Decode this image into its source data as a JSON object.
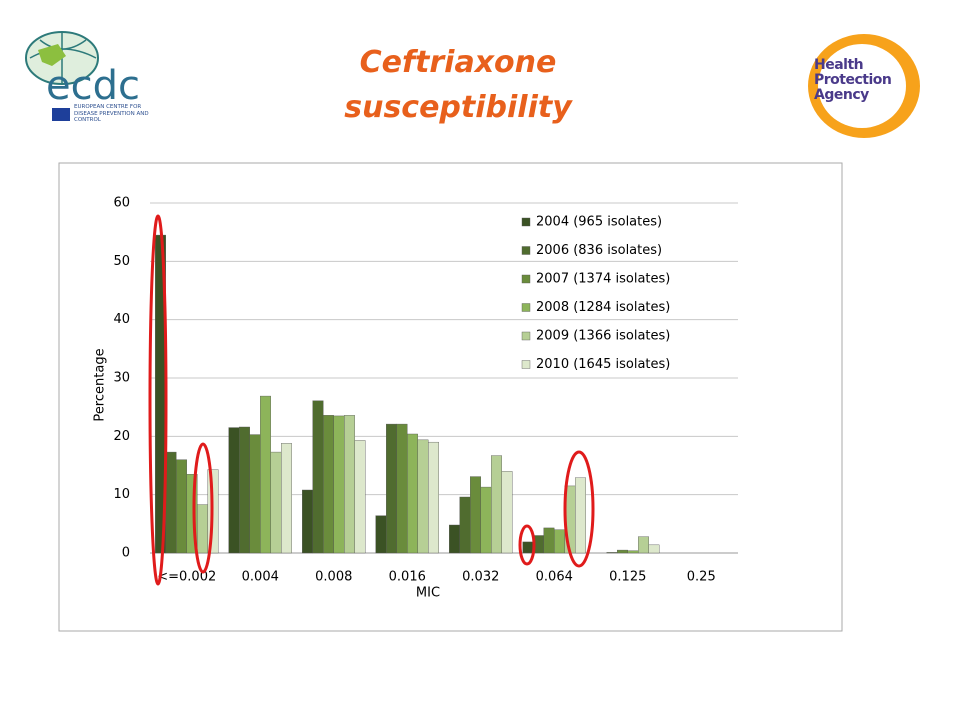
{
  "logos": {
    "ecdc_name": "ecdc",
    "ecdc_subtitle": "EUROPEAN CENTRE FOR DISEASE PREVENTION AND CONTROL",
    "hpa_name": "Health Protection Agency"
  },
  "chart_data": {
    "type": "bar",
    "title": "Ceftriaxone susceptibility",
    "x_label": "MIC",
    "y_label": "Percentage",
    "categories": [
      "<=0.002",
      "0.004",
      "0.008",
      "0.016",
      "0.032",
      "0.064",
      "0.125",
      "0.25"
    ],
    "series": [
      {
        "name": "2004 (965 isolates)",
        "color": "#3b5224",
        "values": [
          54.5,
          21.5,
          10.8,
          6.4,
          4.8,
          1.9,
          0,
          0
        ]
      },
      {
        "name": "2006 (836 isolates)",
        "color": "#506c2f",
        "values": [
          17.3,
          21.6,
          26.1,
          22.1,
          9.6,
          3.0,
          0.1,
          0
        ]
      },
      {
        "name": "2007 (1374 isolates)",
        "color": "#6a8c3c",
        "values": [
          16.0,
          20.3,
          23.6,
          22.1,
          13.1,
          4.3,
          0.5,
          0
        ]
      },
      {
        "name": "2008 (1284 isolates)",
        "color": "#8db45a",
        "values": [
          13.5,
          26.9,
          23.5,
          20.4,
          11.3,
          4.0,
          0.4,
          0
        ]
      },
      {
        "name": "2009 (1366 isolates)",
        "color": "#b6cf95",
        "values": [
          8.3,
          17.3,
          23.6,
          19.4,
          16.7,
          11.5,
          2.8,
          0
        ]
      },
      {
        "name": "2010 (1645 isolates)",
        "color": "#dde8cc",
        "values": [
          14.3,
          18.8,
          19.3,
          19.0,
          14.0,
          12.9,
          1.4,
          0
        ]
      }
    ],
    "ylim": [
      0,
      60
    ],
    "yticks": [
      0,
      10,
      20,
      30,
      40,
      50,
      60
    ],
    "grid": true
  }
}
